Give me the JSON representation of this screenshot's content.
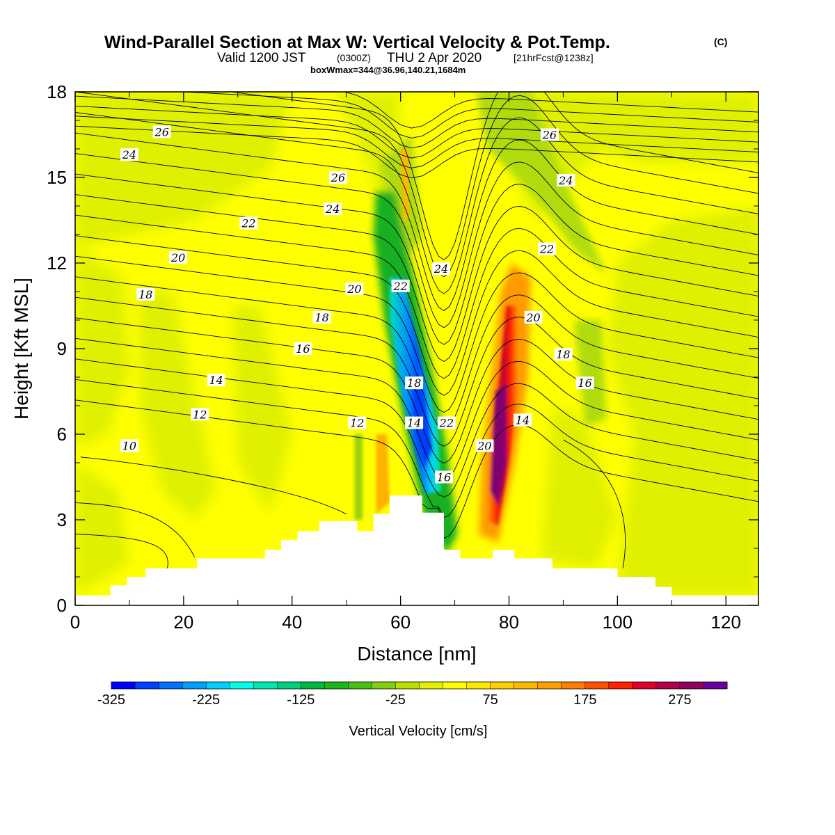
{
  "header": {
    "title": "Wind-Parallel Section at Max W: Vertical Velocity & Pot.Temp.",
    "copyright": "(C)",
    "valid_prefix": "Valid 1200 JST",
    "valid_zulu": "(0300Z)",
    "valid_date": "THU 2 Apr 2020",
    "forecast_info": "[21hrFcst@1238z]",
    "box_info": "boxWmax=344@36.96,140.21,1684m"
  },
  "chart_data": {
    "type": "contour-section",
    "xlabel": "Distance [nm]",
    "ylabel": "Height [Kft MSL]",
    "xlim": [
      0,
      126
    ],
    "ylim": [
      0,
      18
    ],
    "x_ticks": [
      0,
      20,
      40,
      60,
      80,
      100,
      120
    ],
    "y_ticks": [
      0,
      3,
      6,
      9,
      12,
      15,
      18
    ],
    "grid": false,
    "background_color": "#ffff00",
    "colorbar": {
      "title": "Vertical Velocity [cm/s]",
      "range": [
        -325,
        325
      ],
      "step": 25,
      "tick_labels": [
        "-325",
        "-225",
        "-125",
        "-25",
        "75",
        "175",
        "275"
      ],
      "colors": [
        "#0000ff",
        "#0040ff",
        "#0070ff",
        "#00a0ff",
        "#00d0ff",
        "#00ffe8",
        "#00e8b0",
        "#00d078",
        "#00b840",
        "#18b818",
        "#48c010",
        "#80d010",
        "#b8e000",
        "#e0f000",
        "#ffff00",
        "#ffe800",
        "#ffd000",
        "#ffb800",
        "#ffa000",
        "#ff8000",
        "#ff5000",
        "#ff2000",
        "#e00028",
        "#b00048",
        "#900060",
        "#6800a0"
      ]
    },
    "terrain_profile": [
      [
        0,
        0.35
      ],
      [
        6.5,
        0.35
      ],
      [
        6.5,
        0.7
      ],
      [
        9.5,
        0.7
      ],
      [
        9.5,
        1.0
      ],
      [
        13,
        1.0
      ],
      [
        13,
        1.3
      ],
      [
        22.5,
        1.3
      ],
      [
        22.5,
        1.65
      ],
      [
        35,
        1.65
      ],
      [
        35,
        1.95
      ],
      [
        38,
        1.95
      ],
      [
        38,
        2.3
      ],
      [
        41,
        2.3
      ],
      [
        41,
        2.6
      ],
      [
        45,
        2.6
      ],
      [
        45,
        2.95
      ],
      [
        52,
        2.95
      ],
      [
        52,
        2.6
      ],
      [
        55,
        2.6
      ],
      [
        55,
        3.2
      ],
      [
        58,
        3.2
      ],
      [
        58,
        3.85
      ],
      [
        64,
        3.85
      ],
      [
        64,
        3.25
      ],
      [
        68,
        3.25
      ],
      [
        68,
        1.95
      ],
      [
        71,
        1.95
      ],
      [
        71,
        1.65
      ],
      [
        77,
        1.65
      ],
      [
        77,
        1.95
      ],
      [
        81,
        1.95
      ],
      [
        81,
        1.65
      ],
      [
        88,
        1.65
      ],
      [
        88,
        1.3
      ],
      [
        100,
        1.3
      ],
      [
        100,
        1.0
      ],
      [
        107,
        1.0
      ],
      [
        107,
        0.65
      ],
      [
        110,
        0.65
      ],
      [
        110,
        0.35
      ],
      [
        126,
        0.35
      ]
    ],
    "w_features": [
      {
        "kind": "updraft",
        "x": 78.5,
        "y": 5.5,
        "w_max": 344
      },
      {
        "kind": "downdraft",
        "x": 64.5,
        "y": 6.0,
        "w_min": -300
      }
    ],
    "isentrope_labels": [
      {
        "value": "26",
        "x": 16,
        "y": 16.6
      },
      {
        "value": "24",
        "x": 10,
        "y": 15.8
      },
      {
        "value": "26",
        "x": 48.5,
        "y": 15.0
      },
      {
        "value": "24",
        "x": 47.5,
        "y": 13.9
      },
      {
        "value": "22",
        "x": 32,
        "y": 13.4
      },
      {
        "value": "20",
        "x": 19,
        "y": 12.2
      },
      {
        "value": "20",
        "x": 51.5,
        "y": 11.1
      },
      {
        "value": "18",
        "x": 13,
        "y": 10.9
      },
      {
        "value": "18",
        "x": 45.5,
        "y": 10.1
      },
      {
        "value": "16",
        "x": 42,
        "y": 9.0
      },
      {
        "value": "14",
        "x": 26,
        "y": 7.9
      },
      {
        "value": "12",
        "x": 23,
        "y": 6.7
      },
      {
        "value": "12",
        "x": 52,
        "y": 6.4
      },
      {
        "value": "10",
        "x": 10,
        "y": 5.6
      },
      {
        "value": "22",
        "x": 60,
        "y": 11.2
      },
      {
        "value": "24",
        "x": 67.5,
        "y": 11.8
      },
      {
        "value": "18",
        "x": 62.5,
        "y": 7.8
      },
      {
        "value": "14",
        "x": 62.5,
        "y": 6.4
      },
      {
        "value": "22",
        "x": 68.5,
        "y": 6.4
      },
      {
        "value": "16",
        "x": 68,
        "y": 4.5
      },
      {
        "value": "20",
        "x": 75.5,
        "y": 5.6
      },
      {
        "value": "14",
        "x": 82.5,
        "y": 6.5
      },
      {
        "value": "26",
        "x": 87.5,
        "y": 16.5
      },
      {
        "value": "24",
        "x": 90.5,
        "y": 14.9
      },
      {
        "value": "22",
        "x": 87,
        "y": 12.5
      },
      {
        "value": "20",
        "x": 84.5,
        "y": 10.1
      },
      {
        "value": "18",
        "x": 90,
        "y": 8.8
      },
      {
        "value": "16",
        "x": 94,
        "y": 7.8
      }
    ]
  }
}
